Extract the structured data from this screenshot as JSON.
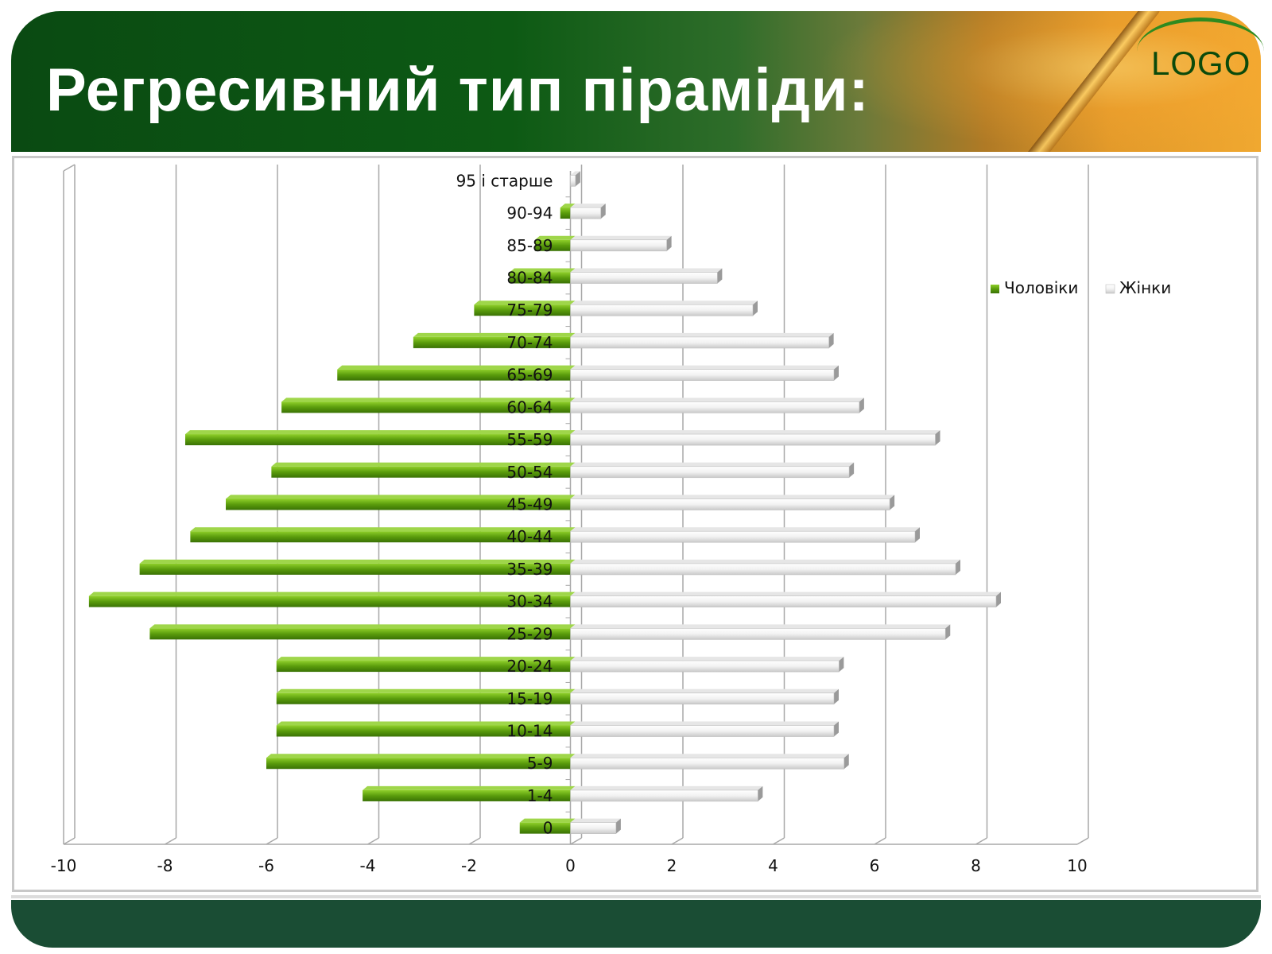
{
  "slide": {
    "title": "Регресивний тип піраміди:",
    "logo": "LOGO"
  },
  "colors": {
    "header_green": "#0a4a12",
    "footer_green": "#1a4d34",
    "male": "#5a9c0c",
    "female": "#f0f0f0"
  },
  "chart_data": {
    "type": "bar",
    "orientation": "horizontal",
    "categories": [
      "0",
      "1-4",
      "5-9",
      "10-14",
      "15-19",
      "20-24",
      "25-29",
      "30-34",
      "35-39",
      "40-44",
      "45-49",
      "50-54",
      "55-59",
      "60-64",
      "65-69",
      "70-74",
      "75-79",
      "80-84",
      "85-89",
      "90-94",
      "95 і старше"
    ],
    "series": [
      {
        "name": "Чоловіки",
        "values": [
          -1.0,
          -4.1,
          -6.0,
          -5.8,
          -5.8,
          -5.8,
          -8.3,
          -9.5,
          -8.5,
          -7.5,
          -6.8,
          -5.9,
          -7.6,
          -5.7,
          -4.6,
          -3.1,
          -1.9,
          -1.2,
          -0.7,
          -0.2,
          0.0
        ]
      },
      {
        "name": "Жінки",
        "values": [
          0.9,
          3.7,
          5.4,
          5.2,
          5.2,
          5.3,
          7.4,
          8.4,
          7.6,
          6.8,
          6.3,
          5.5,
          7.2,
          5.7,
          5.2,
          5.1,
          3.6,
          2.9,
          1.9,
          0.6,
          0.1
        ]
      }
    ],
    "xlim": [
      -10,
      10
    ],
    "x_ticks": [
      "-10",
      "-8",
      "-6",
      "-4",
      "-2",
      "0",
      "2",
      "4",
      "6",
      "8",
      "10"
    ],
    "grid": true,
    "legend_position": "right"
  }
}
